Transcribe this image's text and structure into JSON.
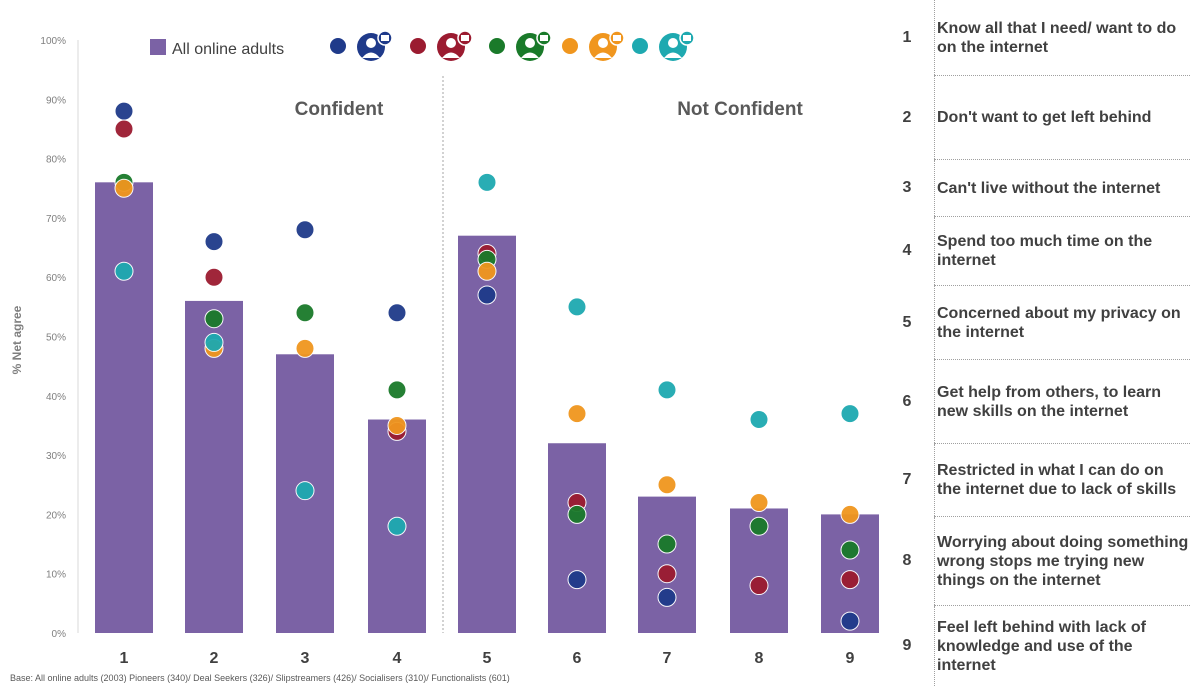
{
  "chart_data": {
    "type": "bar",
    "ylabel": "% Net agree",
    "yticks": [
      "0%",
      "10%",
      "20%",
      "30%",
      "40%",
      "50%",
      "60%",
      "70%",
      "80%",
      "90%",
      "100%"
    ],
    "ylim": [
      0,
      100
    ],
    "grid": false,
    "categories": [
      "1",
      "2",
      "3",
      "4",
      "5",
      "6",
      "7",
      "8",
      "9"
    ],
    "sections": [
      {
        "label": "Confident",
        "categories": [
          "1",
          "2",
          "3",
          "4"
        ]
      },
      {
        "label": "Not Confident",
        "categories": [
          "5",
          "6",
          "7",
          "8",
          "9"
        ]
      }
    ],
    "bar_series": {
      "name": "All online adults",
      "color": "#7b62a5",
      "values": [
        76,
        56,
        47,
        36,
        67,
        32,
        23,
        21,
        20
      ]
    },
    "dot_series": [
      {
        "color": "#1f3a8a",
        "icon": "pioneers-icon",
        "values": [
          88,
          66,
          68,
          54,
          57,
          9,
          6,
          null,
          2
        ]
      },
      {
        "color": "#9b1b30",
        "icon": "deal-seekers-icon",
        "values": [
          85,
          60,
          null,
          34,
          64,
          22,
          10,
          8,
          9
        ]
      },
      {
        "color": "#1a7a2a",
        "icon": "slipstreamers-icon",
        "values": [
          76,
          53,
          54,
          41,
          63,
          20,
          15,
          18,
          14
        ]
      },
      {
        "color": "#f0961e",
        "icon": "socialisers-icon",
        "values": [
          75,
          48,
          48,
          35,
          61,
          37,
          25,
          22,
          20
        ]
      },
      {
        "color": "#1ea9b0",
        "icon": "functionalists-icon",
        "values": [
          61,
          49,
          24,
          18,
          76,
          55,
          41,
          36,
          37
        ]
      }
    ],
    "legend_label": "All online adults",
    "legend_placement": "top"
  },
  "base_note": "Base: All online adults (2003)    Pioneers (340)/  Deal Seekers (326)/   Slipstreamers (426)/  Socialisers (310)/  Functionalists (601)",
  "statements": [
    {
      "num": "1",
      "text": "Know all that I need/ want to do on the internet"
    },
    {
      "num": "2",
      "text": "Don't want to get left behind"
    },
    {
      "num": "3",
      "text": "Can't live without the internet"
    },
    {
      "num": "4",
      "text": "Spend too much time on the internet"
    },
    {
      "num": "5",
      "text": "Concerned about my privacy on the internet"
    },
    {
      "num": "6",
      "text": "Get help from others, to learn new skills on the internet"
    },
    {
      "num": "7",
      "text": "Restricted in what I can do on the internet due to lack of skills"
    },
    {
      "num": "8",
      "text": "Worrying about doing something wrong stops me trying new things on the internet"
    },
    {
      "num": "9",
      "text": "Feel left behind with lack of knowledge and use of the internet"
    }
  ]
}
